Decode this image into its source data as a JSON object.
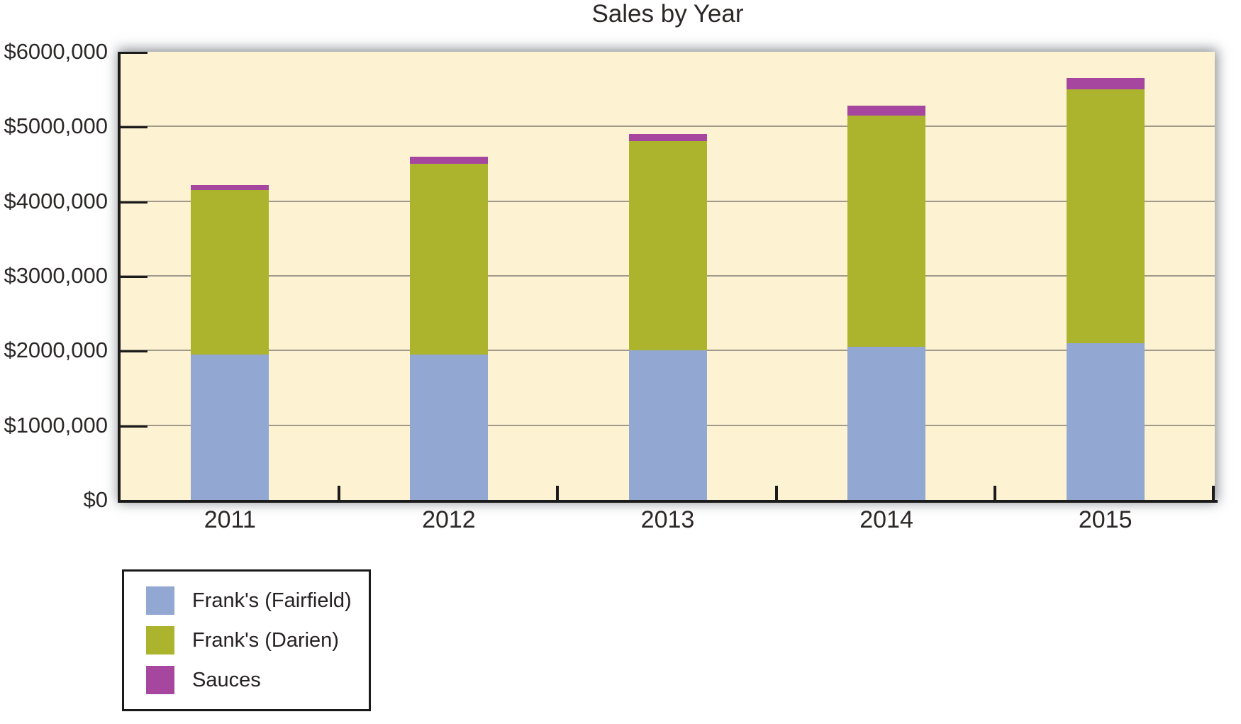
{
  "chart_data": {
    "type": "bar",
    "stacked": true,
    "title": "Sales by Year",
    "categories": [
      "2011",
      "2012",
      "2013",
      "2014",
      "2015"
    ],
    "series": [
      {
        "name": "Frank's (Fairfield)",
        "color": "#92A7D2",
        "values": [
          1950000,
          1950000,
          2000000,
          2050000,
          2100000
        ]
      },
      {
        "name": "Frank's (Darien)",
        "color": "#ACB42D",
        "values": [
          2200000,
          2550000,
          2800000,
          3100000,
          3400000
        ]
      },
      {
        "name": "Sauces",
        "color": "#A6469F",
        "values": [
          70000,
          95000,
          95000,
          125000,
          145000
        ]
      }
    ],
    "y_axis": {
      "min": 0,
      "max": 6000000,
      "step": 1000000,
      "tick_labels": [
        "$0",
        "$1000,000",
        "$2000,000",
        "$3000,000",
        "$4000,000",
        "$5000,000",
        "$6000,000"
      ]
    },
    "grid": true,
    "legend_position": "bottom-left",
    "colors": {
      "plot_background": "#FDF2D1",
      "gridline": "#A19A8C",
      "axis": "#1b1b1b",
      "text": "#2b2827"
    }
  }
}
